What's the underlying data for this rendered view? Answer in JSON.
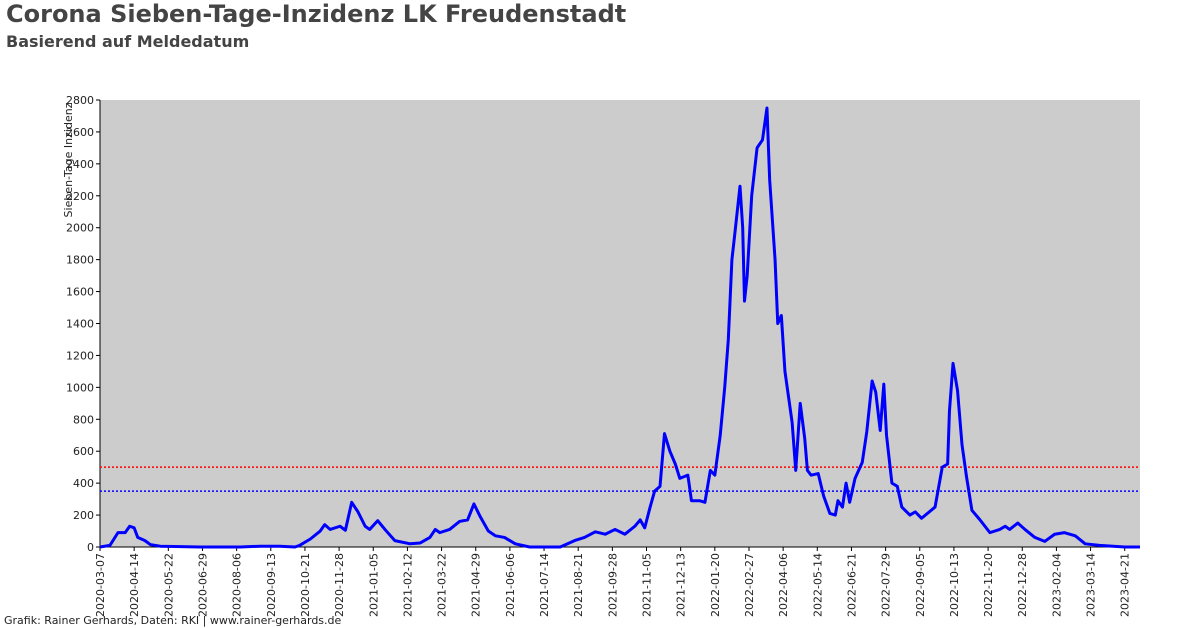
{
  "chart_data": {
    "type": "line",
    "title": "Corona Sieben-Tage-Inzidenz LK Freudenstadt",
    "subtitle": "Basierend auf Meldedatum",
    "y_label": "Sieben-Tage Inzidenz",
    "source": "Grafik: Rainer Gerhards, Daten: RKI | www.rainer-gerhards.de",
    "xlim": [
      "2020-03-07",
      "2023-05-08"
    ],
    "xticks": [
      "2020-03-07",
      "2020-04-14",
      "2020-05-22",
      "2020-06-29",
      "2020-08-06",
      "2020-09-13",
      "2020-10-21",
      "2020-11-28",
      "2021-01-05",
      "2021-02-12",
      "2021-03-22",
      "2021-04-29",
      "2021-06-06",
      "2021-07-14",
      "2021-08-21",
      "2021-09-28",
      "2021-11-05",
      "2021-12-13",
      "2022-01-20",
      "2022-02-27",
      "2022-04-06",
      "2022-05-14",
      "2022-06-21",
      "2022-07-29",
      "2022-09-05",
      "2022-10-13",
      "2022-11-20",
      "2022-12-28",
      "2023-02-04",
      "2023-03-14",
      "2023-04-21"
    ],
    "ylim": [
      0,
      2800
    ],
    "yticks": [
      0,
      200,
      400,
      600,
      800,
      1000,
      1200,
      1400,
      1600,
      1800,
      2000,
      2200,
      2400,
      2600,
      2800
    ],
    "background": "#cccccc",
    "hlines": [
      {
        "value": 500,
        "color": "#ff0000"
      },
      {
        "value": 350,
        "color": "#0000ff"
      }
    ],
    "x": [
      "2020-03-07",
      "2020-03-18",
      "2020-03-27",
      "2020-04-04",
      "2020-04-09",
      "2020-04-14",
      "2020-04-18",
      "2020-04-26",
      "2020-05-02",
      "2020-05-13",
      "2020-05-29",
      "2020-06-26",
      "2020-08-10",
      "2020-09-01",
      "2020-09-23",
      "2020-10-10",
      "2020-10-15",
      "2020-10-27",
      "2020-11-07",
      "2020-11-12",
      "2020-11-18",
      "2020-11-29",
      "2020-12-05",
      "2020-12-08",
      "2020-12-12",
      "2020-12-19",
      "2020-12-27",
      "2021-01-01",
      "2021-01-10",
      "2021-01-18",
      "2021-01-29",
      "2021-02-15",
      "2021-02-26",
      "2021-03-09",
      "2021-03-15",
      "2021-03-20",
      "2021-03-31",
      "2021-04-11",
      "2021-04-20",
      "2021-04-27",
      "2021-05-04",
      "2021-05-13",
      "2021-05-21",
      "2021-05-31",
      "2021-06-12",
      "2021-06-28",
      "2021-08-01",
      "2021-08-17",
      "2021-08-28",
      "2021-09-09",
      "2021-09-20",
      "2021-10-01",
      "2021-10-12",
      "2021-10-23",
      "2021-10-29",
      "2021-11-03",
      "2021-11-09",
      "2021-11-14",
      "2021-11-20",
      "2021-11-25",
      "2021-12-01",
      "2021-12-07",
      "2021-12-12",
      "2021-12-21",
      "2021-12-25",
      "2022-01-03",
      "2022-01-09",
      "2022-01-15",
      "2022-01-20",
      "2022-01-26",
      "2022-01-31",
      "2022-02-04",
      "2022-02-08",
      "2022-02-11",
      "2022-02-17",
      "2022-02-20",
      "2022-02-22",
      "2022-02-25",
      "2022-03-02",
      "2022-03-08",
      "2022-03-14",
      "2022-03-19",
      "2022-03-22",
      "2022-03-28",
      "2022-03-31",
      "2022-04-04",
      "2022-04-08",
      "2022-04-16",
      "2022-04-20",
      "2022-04-25",
      "2022-04-30",
      "2022-05-03",
      "2022-05-07",
      "2022-05-15",
      "2022-05-21",
      "2022-05-28",
      "2022-06-03",
      "2022-06-06",
      "2022-06-11",
      "2022-06-15",
      "2022-06-19",
      "2022-06-25",
      "2022-07-03",
      "2022-07-08",
      "2022-07-14",
      "2022-07-18",
      "2022-07-23",
      "2022-07-27",
      "2022-07-30",
      "2022-08-05",
      "2022-08-11",
      "2022-08-16",
      "2022-08-25",
      "2022-08-31",
      "2022-09-07",
      "2022-09-22",
      "2022-09-30",
      "2022-10-06",
      "2022-10-08",
      "2022-10-12",
      "2022-10-17",
      "2022-10-22",
      "2022-10-27",
      "2022-11-02",
      "2022-11-11",
      "2022-11-22",
      "2022-12-03",
      "2022-12-09",
      "2022-12-14",
      "2022-12-23",
      "2022-12-31",
      "2023-01-11",
      "2023-01-22",
      "2023-02-02",
      "2023-02-13",
      "2023-02-25",
      "2023-03-08",
      "2023-03-24",
      "2023-04-21",
      "2023-05-08"
    ],
    "series": [
      {
        "name": "Sieben-Tage-Inzidenz",
        "color": "#0000ff",
        "values": [
          0,
          10,
          90,
          90,
          130,
          120,
          60,
          40,
          15,
          5,
          3,
          0,
          0,
          5,
          5,
          0,
          10,
          50,
          100,
          140,
          110,
          130,
          105,
          180,
          280,
          220,
          130,
          110,
          165,
          110,
          40,
          20,
          25,
          60,
          110,
          90,
          110,
          160,
          170,
          270,
          190,
          100,
          70,
          60,
          20,
          0,
          0,
          40,
          60,
          95,
          80,
          110,
          80,
          130,
          170,
          120,
          250,
          350,
          380,
          710,
          600,
          520,
          430,
          450,
          290,
          290,
          280,
          480,
          450,
          700,
          1000,
          1300,
          1800,
          1950,
          2260,
          2000,
          1540,
          1700,
          2200,
          2500,
          2550,
          2750,
          2300,
          1800,
          1400,
          1450,
          1100,
          780,
          480,
          900,
          680,
          480,
          450,
          460,
          320,
          210,
          200,
          290,
          250,
          400,
          280,
          430,
          530,
          720,
          1040,
          970,
          730,
          1020,
          700,
          400,
          380,
          250,
          200,
          220,
          180,
          250,
          500,
          520,
          850,
          1150,
          980,
          640,
          440,
          230,
          170,
          90,
          110,
          130,
          110,
          150,
          110,
          60,
          35,
          80,
          90,
          70,
          20,
          10,
          0,
          0
        ]
      }
    ]
  }
}
